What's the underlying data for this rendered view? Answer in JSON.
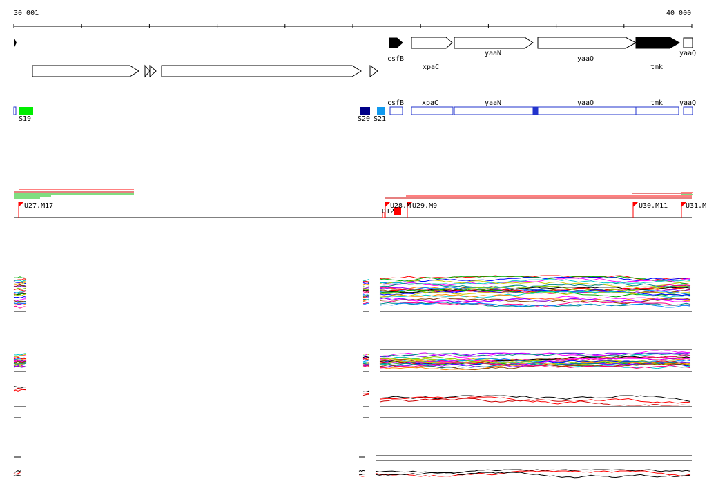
{
  "ruler": {
    "start_label": "30 001",
    "end_label": "40 000"
  },
  "genes_top": [
    {
      "label": "csfB",
      "filled": true
    },
    {
      "label": "xpaC",
      "filled": false
    },
    {
      "label": "yaaN",
      "filled": false
    },
    {
      "label": "yaaO",
      "filled": false
    },
    {
      "label": "tmk",
      "filled": true
    },
    {
      "label": "yaaQ",
      "filled": false
    }
  ],
  "genes_blue": [
    {
      "label": "csfB"
    },
    {
      "label": "xpaC"
    },
    {
      "label": "yaaN"
    },
    {
      "label": "yaaO"
    },
    {
      "label": "tmk"
    },
    {
      "label": "yaaQ"
    }
  ],
  "segments": [
    {
      "label": "S19",
      "color": "#00ee00"
    },
    {
      "label": "S20",
      "color": "#000088"
    },
    {
      "label": "S21",
      "color": "#1199ee"
    }
  ],
  "markers": [
    {
      "label": "U27.M17"
    },
    {
      "label": "U28.M"
    },
    {
      "label": "U29.M9"
    },
    {
      "label": "U30.M11"
    },
    {
      "label": "U31.M"
    }
  ],
  "small_marker": {
    "label": "D12"
  },
  "colors": {
    "gene_outline": "#000000",
    "blue_track": "#2233cc",
    "marker_flag": "#ff0000"
  }
}
